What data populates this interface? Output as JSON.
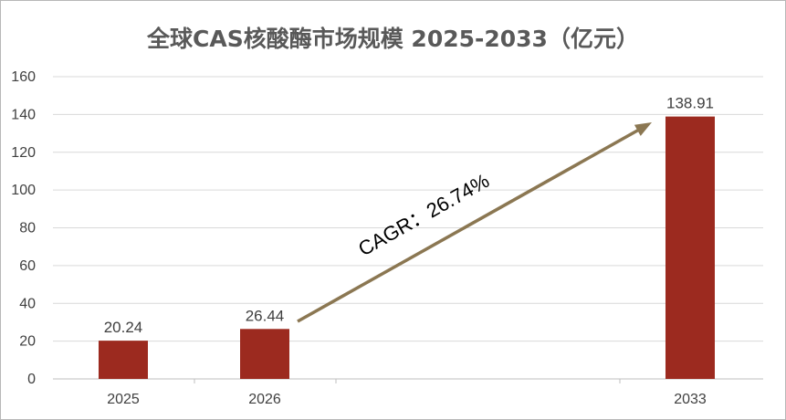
{
  "chart_data": {
    "type": "bar",
    "title": "全球CAS核酸酶市场规模  2025-2033（亿元）",
    "categories": [
      "2025",
      "2026",
      "2033"
    ],
    "values": [
      20.24,
      26.44,
      138.91
    ],
    "data_labels": [
      "20.24",
      "26.44",
      "138.91"
    ],
    "yticks": [
      0,
      20,
      40,
      60,
      80,
      100,
      120,
      140,
      160
    ],
    "ylim": [
      0,
      160
    ],
    "xlabel": "",
    "ylabel": "",
    "grid": true,
    "legend": "none",
    "annotation": {
      "text": "CAGR：26.74%",
      "from_category": "2026",
      "to_category": "2033"
    },
    "colors": {
      "bar": "#9c2a1f",
      "arrow": "#8b7752",
      "grid": "#d9d9d9",
      "axis": "#bfbfbf"
    }
  }
}
